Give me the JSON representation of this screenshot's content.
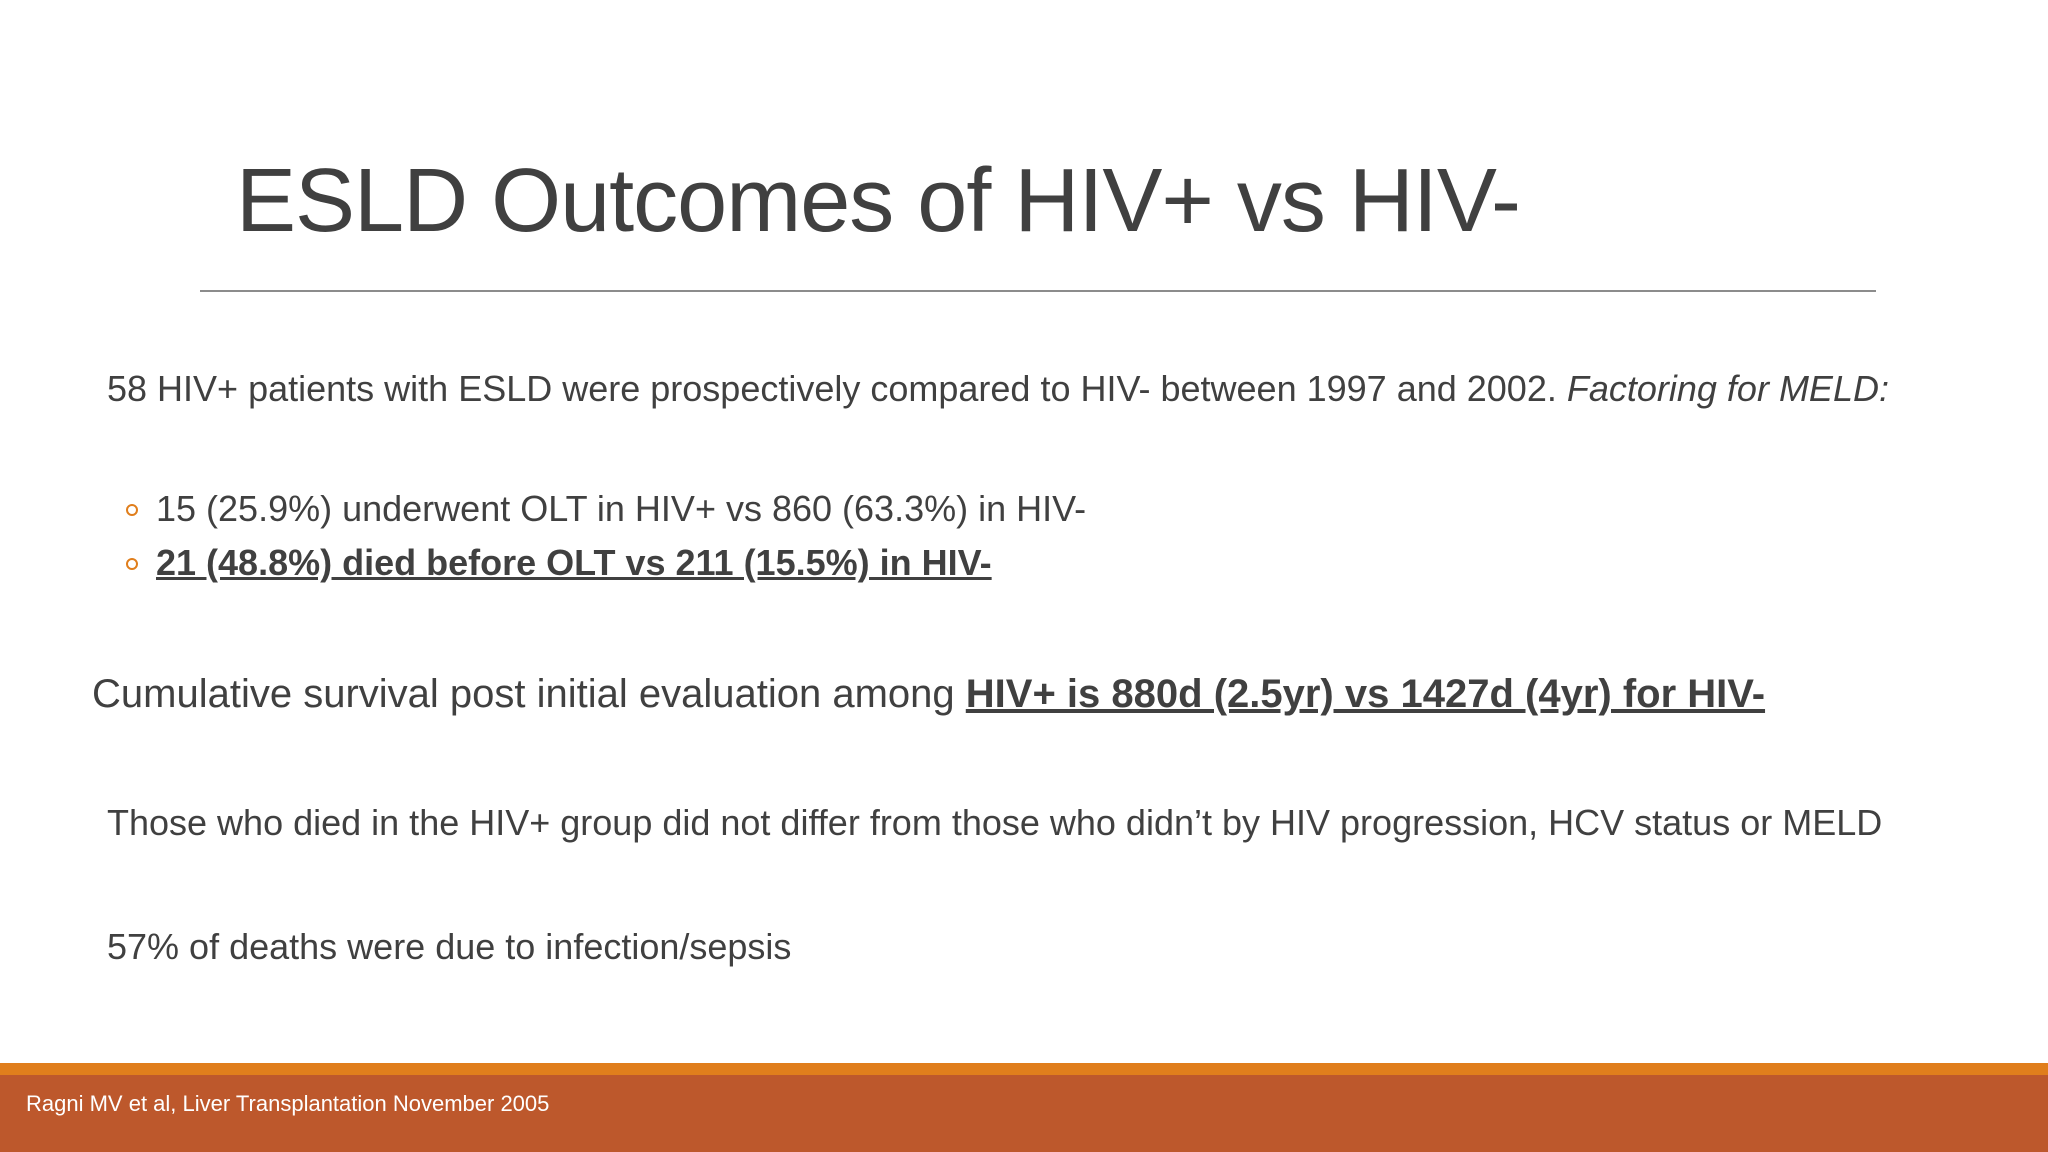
{
  "slide": {
    "title": "ESLD Outcomes of HIV+ vs HIV-",
    "intro": {
      "text": "58 HIV+ patients with ESLD were prospectively compared to HIV- between 1997 and 2002. ",
      "italic": "Factoring for MELD:"
    },
    "bullets": [
      "15 (25.9%) underwent OLT in HIV+ vs 860 (63.3%) in HIV-",
      "21 (48.8%) died before OLT vs 211 (15.5%) in HIV-"
    ],
    "survival": {
      "text": "Cumulative survival post initial evaluation among ",
      "emphasis": "HIV+ is 880d (2.5yr) vs 1427d (4yr) for HIV-"
    },
    "progression": "Those who died in the HIV+ group did not differ from those who didn’t by HIV progression, HCV status or MELD",
    "deaths": "57% of deaths were due to infection/sepsis",
    "footer": "Ragni MV et al, Liver Transplantation November 2005"
  },
  "colors": {
    "text": "#404040",
    "accent_orange": "#e07e1c",
    "footer_bar": "#bd582c",
    "rule": "#8c8c8c"
  }
}
